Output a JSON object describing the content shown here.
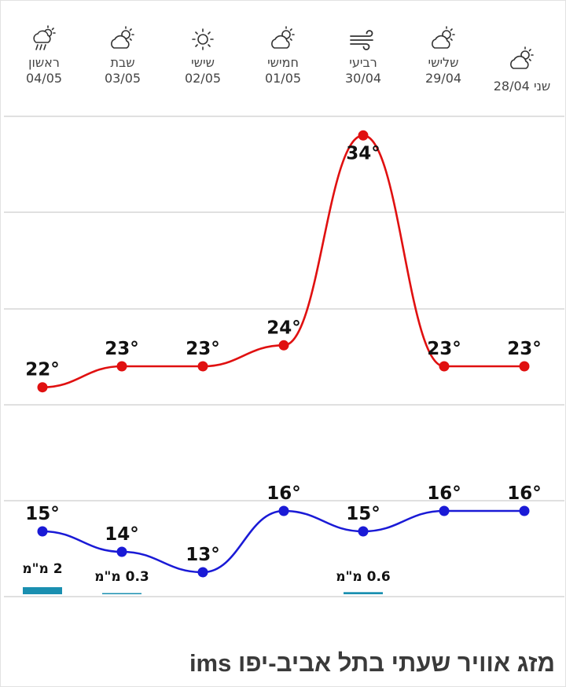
{
  "days": [
    {
      "name": "ראשון",
      "date": "04/05",
      "icon": "rain-cloud-sun-icon"
    },
    {
      "name": "שבת",
      "date": "03/05",
      "icon": "partly-cloudy-icon"
    },
    {
      "name": "שישי",
      "date": "02/05",
      "icon": "sun-icon"
    },
    {
      "name": "חמישי",
      "date": "01/05",
      "icon": "partly-cloudy-icon"
    },
    {
      "name": "רביעי",
      "date": "30/04",
      "icon": "wind-icon"
    },
    {
      "name": "שלישי",
      "date": "29/04",
      "icon": "partly-cloudy-icon"
    },
    {
      "name": "שני",
      "date": "28/04",
      "icon": "partly-cloudy-icon"
    }
  ],
  "colors": {
    "max": "#e01010",
    "min": "#1a1ad6",
    "rain": "#1a8fb0",
    "grid": "#e0e0e0"
  },
  "chart_data": {
    "type": "line",
    "categories": [
      "04/05",
      "03/05",
      "02/05",
      "01/05",
      "30/04",
      "29/04",
      "28/04"
    ],
    "series": [
      {
        "values": [
          22,
          23,
          23,
          24,
          34,
          23,
          23
        ],
        "labels": [
          "22°",
          "23°",
          "23°",
          "24°",
          "34°",
          "23°",
          "23°"
        ]
      },
      {
        "values": [
          15,
          14,
          13,
          16,
          15,
          16,
          16
        ],
        "labels": [
          "15°",
          "14°",
          "13°",
          "16°",
          "15°",
          "16°",
          "16°"
        ]
      }
    ],
    "rain": [
      {
        "category": "04/05",
        "value": 2,
        "label": "2 מ\"מ"
      },
      {
        "category": "03/05",
        "value": 0.3,
        "label": "0.3 מ\"מ"
      },
      {
        "category": "30/04",
        "value": 0.6,
        "label": "0.6 מ\"מ"
      }
    ],
    "grid": true
  },
  "title": "מזג אוויר שעתי בתל אביב-יפו ims"
}
